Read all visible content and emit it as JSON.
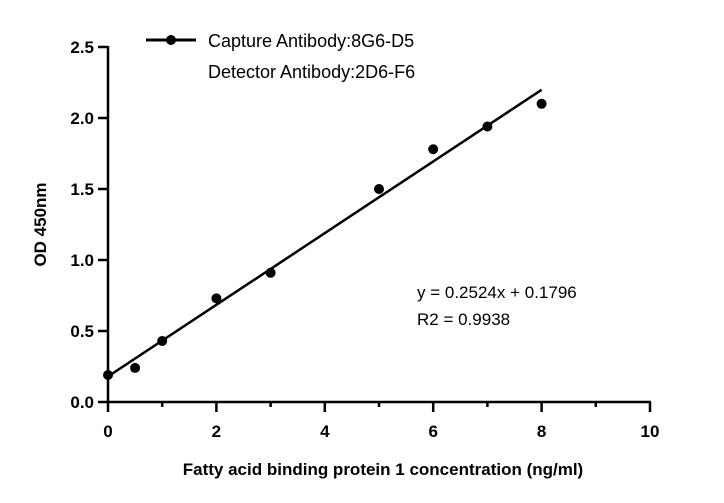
{
  "chart_data": {
    "type": "scatter",
    "xlabel": "Fatty acid binding protein 1 concentration (ng/ml)",
    "ylabel": "OD 450nm",
    "xlim": [
      0,
      10
    ],
    "ylim": [
      0,
      2.5
    ],
    "xticks": [
      "0",
      "2",
      "4",
      "6",
      "8",
      "10"
    ],
    "yticks": [
      "0.0",
      "0.5",
      "1.0",
      "1.5",
      "2.0",
      "2.5"
    ],
    "grid": false,
    "legend": {
      "position": "top-left",
      "line1": "Capture Antibody:8G6-D5",
      "line2": "Detector Antibody:2D6-F6"
    },
    "series": [
      {
        "x": [
          0,
          0.5,
          1,
          2,
          3,
          5,
          6,
          7,
          8
        ],
        "y": [
          0.19,
          0.24,
          0.43,
          0.73,
          0.91,
          1.5,
          1.78,
          1.94,
          2.1
        ],
        "color": "#000000"
      }
    ],
    "fit": {
      "slope": 0.2524,
      "intercept": 0.1796,
      "x_range": [
        0,
        8
      ],
      "equation": "y = 0.2524x + 0.1796",
      "r2": "R2 = 0.9938"
    }
  }
}
